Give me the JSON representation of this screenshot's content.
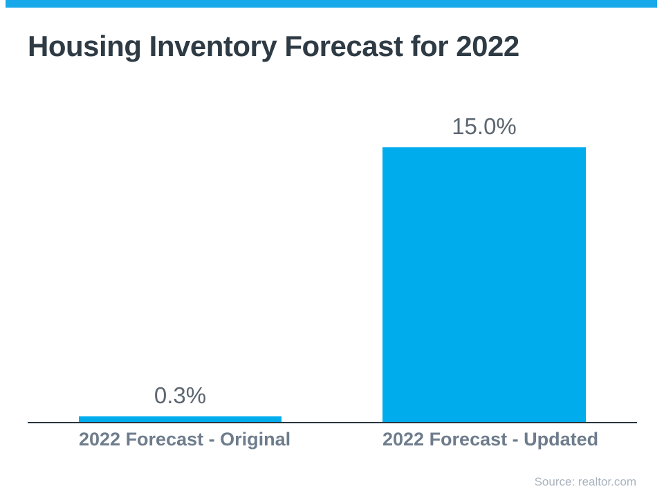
{
  "title": "Housing Inventory Forecast for 2022",
  "source": "Source: realtor.com",
  "colors": {
    "banner": "#17A9EA",
    "bar": "#00ACEC",
    "title_text": "#2E3B44",
    "value_label": "#5C6670",
    "category_label": "#6E7C8C",
    "axis": "#273540",
    "source_text": "#A9B3BE",
    "background": "#FFFFFF"
  },
  "chart_data": {
    "type": "bar",
    "title": "Housing Inventory Forecast for 2022",
    "categories": [
      "2022 Forecast - Original",
      "2022 Forecast - Updated"
    ],
    "values": [
      0.3,
      15.0
    ],
    "value_labels": [
      "0.3%",
      "15.0%"
    ],
    "xlabel": "",
    "ylabel": "",
    "ylim": [
      0,
      15
    ],
    "grid": false,
    "legend": false,
    "axes_visible": "x-only",
    "data_label_position": "above-bar",
    "bar_color": "#00ACEC",
    "annotation": "Source: realtor.com"
  }
}
